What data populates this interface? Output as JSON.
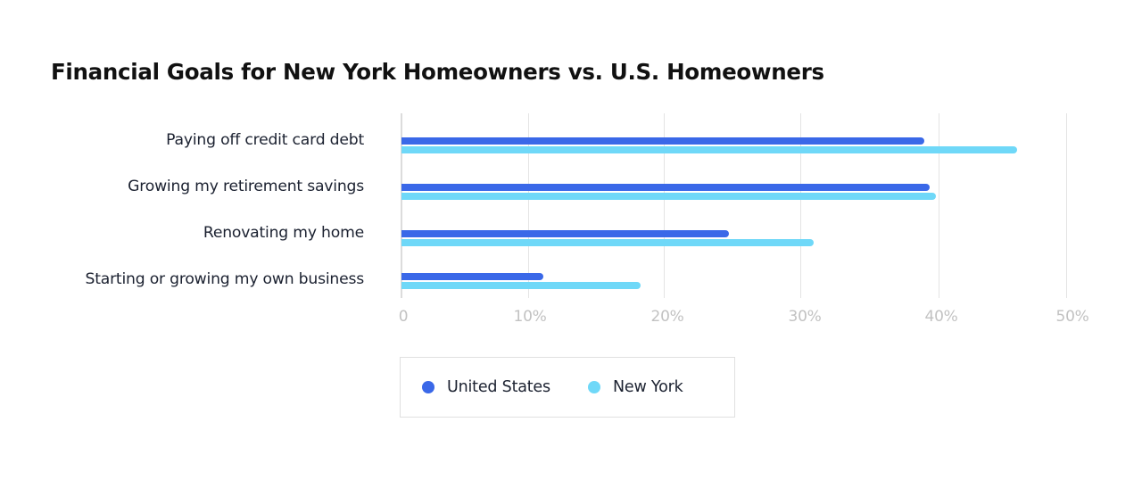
{
  "title": "Financial Goals for New York Homeowners vs. U.S. Homeowners",
  "colors": {
    "united_states": "#3a68e8",
    "new_york": "#6fd8f8"
  },
  "axis": {
    "ticks": [
      "0",
      "10%",
      "20%",
      "30%",
      "40%",
      "50%"
    ]
  },
  "legend": {
    "items": [
      {
        "label": "United States",
        "color": "#3a68e8"
      },
      {
        "label": "New York",
        "color": "#6fd8f8"
      }
    ]
  },
  "chart_data": {
    "type": "bar",
    "orientation": "horizontal",
    "title": "Financial Goals for New York Homeowners vs. U.S. Homeowners",
    "categories": [
      "Paying off credit card debt",
      "Growing my retirement savings",
      "Renovating my home",
      "Starting or growing my own business"
    ],
    "series": [
      {
        "name": "United States",
        "color": "#3a68e8",
        "values": [
          39.3,
          39.7,
          24.6,
          10.7
        ]
      },
      {
        "name": "New York",
        "color": "#6fd8f8",
        "values": [
          46.3,
          40.2,
          31.0,
          18.0
        ]
      }
    ],
    "xlabel": "",
    "ylabel": "",
    "xlim": [
      0,
      50
    ],
    "xticks": [
      "0",
      "10%",
      "20%",
      "30%",
      "40%",
      "50%"
    ],
    "grid": "vertical",
    "legend_position": "bottom"
  }
}
